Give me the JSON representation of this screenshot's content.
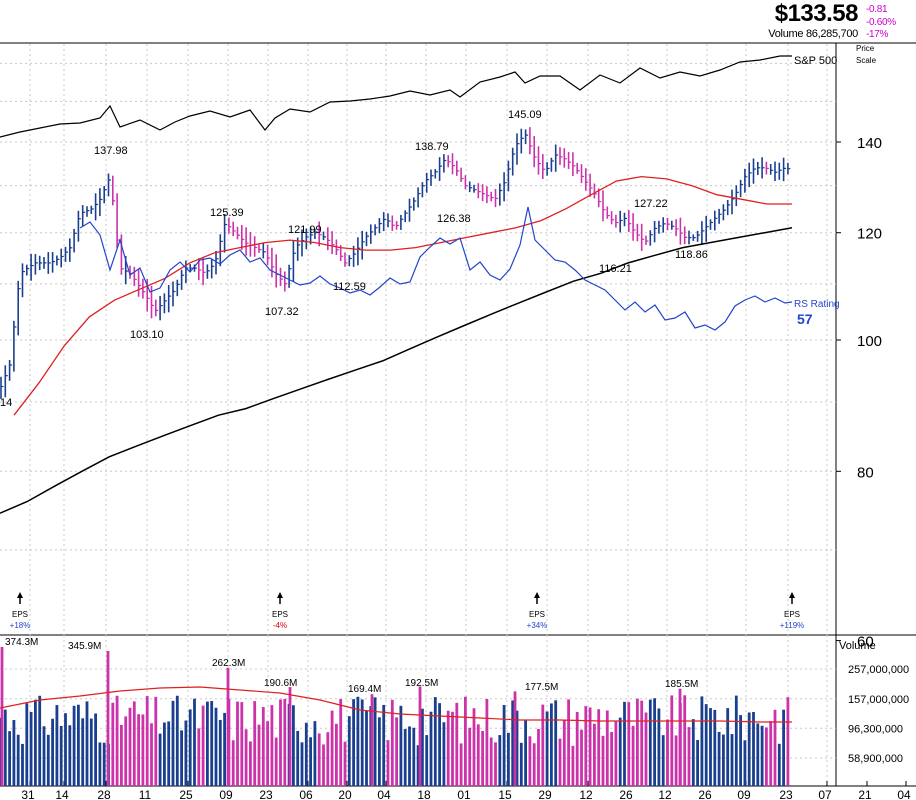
{
  "header": {
    "price": "$133.58",
    "change_abs": "-0.81",
    "change_pct": "-0.60%",
    "change_ytd": "-17%",
    "volume_line": "Volume 86,285,700",
    "price_note": "Price",
    "scale_note": "Scale"
  },
  "colors": {
    "up": "#1a3f8f",
    "down": "#cc33aa",
    "ma50": "#e02020",
    "ma200": "#000000",
    "rs": "#2244cc",
    "sp500": "#000000",
    "grid": "#c8c8c8"
  },
  "chart_data": [
    {
      "type": "ohlc",
      "panel": "price",
      "scale": "log",
      "ylim": [
        42,
        182
      ],
      "y_ticks": [
        "140",
        "120",
        "100",
        "80",
        "60"
      ],
      "x_tick_labels": [
        "31",
        "14",
        "28",
        "11",
        "25",
        "09",
        "23",
        "06",
        "20",
        "04",
        "18",
        "01",
        "15",
        "29",
        "12",
        "26",
        "12",
        "26",
        "09",
        "23",
        "07",
        "21",
        "04"
      ],
      "price_labels": [
        "137.98",
        "125.39",
        "121.99",
        "138.79",
        "145.09",
        "127.22",
        "103.10",
        "107.32",
        "112.59",
        "126.38",
        "116.21",
        "118.86",
        "14"
      ],
      "ma50_values": [
        88,
        93,
        99,
        104,
        107,
        109,
        111,
        114,
        116,
        117,
        118,
        118.5,
        118,
        117,
        116.5,
        116.5,
        117,
        118,
        119,
        120,
        121,
        122.5,
        125,
        128,
        131,
        132,
        131.5,
        130,
        128,
        127,
        126,
        126
      ],
      "ma200_values": [
        74.5,
        76,
        78,
        80,
        82,
        83.5,
        85,
        86.5,
        88,
        89,
        90.5,
        92,
        93.5,
        95,
        96.5,
        98.5,
        100.5,
        102.5,
        104.5,
        106.5,
        108.5,
        110.5,
        112,
        114,
        115.5,
        117,
        118,
        119,
        120,
        121
      ],
      "sp500_label": "S&P 500",
      "rs_label": "RS Rating",
      "rs_value": "57",
      "eps_events": [
        {
          "label": "EPS",
          "change": "+18%",
          "color": "#2244cc"
        },
        {
          "label": "EPS",
          "change": "-4%",
          "color": "#dd0000"
        },
        {
          "label": "EPS",
          "change": "+34%",
          "color": "#2244cc"
        },
        {
          "label": "EPS",
          "change": "+119%",
          "color": "#2244cc"
        }
      ]
    },
    {
      "type": "bar",
      "panel": "volume",
      "title": "Volume",
      "y_ticks": [
        "257,000,000",
        "157,000,000",
        "96,300,000",
        "58,900,000"
      ],
      "peak_labels": [
        "374.3M",
        "345.9M",
        "262.3M",
        "190.6M",
        "169.4M",
        "192.5M",
        "177.5M",
        "185.5M"
      ]
    }
  ]
}
